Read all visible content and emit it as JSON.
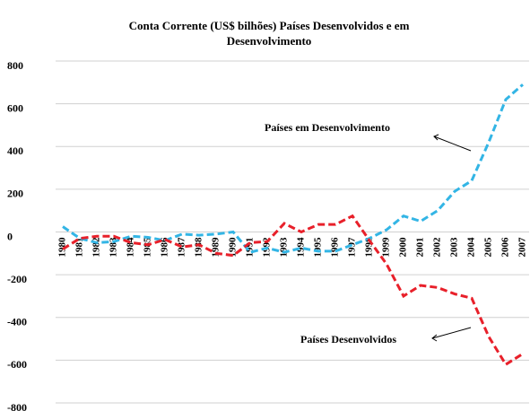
{
  "chart_data": {
    "type": "line",
    "title": "Conta Corrente (US$ bilhões)  Países Desenvolvidos e em",
    "subtitle": "Desenvolvimento",
    "annotations": [
      "Países em Desenvolvimento",
      "Países Desenvolvidos"
    ],
    "categories": [
      "1980",
      "1981",
      "1982",
      "1983",
      "1984",
      "1985",
      "1986",
      "1987",
      "1988",
      "1989",
      "1990",
      "1991",
      "1992",
      "1993",
      "1994",
      "1995",
      "1996",
      "1997",
      "1998",
      "1999",
      "2000",
      "2001",
      "2002",
      "2003",
      "2004",
      "2005",
      "2006",
      "2007"
    ],
    "series": [
      {
        "name": "Países em Desenvolvimento",
        "color": "#33b5e5",
        "values": [
          25,
          -30,
          -50,
          -45,
          -20,
          -25,
          -40,
          -10,
          -15,
          -10,
          0,
          -95,
          -75,
          -95,
          -75,
          -90,
          -90,
          -60,
          -30,
          10,
          75,
          50,
          100,
          190,
          240,
          420,
          620,
          690
        ]
      },
      {
        "name": "Países Desenvolvidos",
        "color": "#e8202a",
        "values": [
          -80,
          -30,
          -20,
          -20,
          -50,
          -60,
          -35,
          -70,
          -60,
          -100,
          -110,
          -50,
          -45,
          40,
          0,
          35,
          35,
          75,
          -40,
          -150,
          -300,
          -250,
          -260,
          -290,
          -310,
          -490,
          -620,
          -570
        ]
      }
    ],
    "ylim": [
      -800,
      800
    ],
    "yticks": [
      -800,
      -600,
      -400,
      -200,
      0,
      200,
      400,
      600,
      800
    ],
    "grid": true
  }
}
